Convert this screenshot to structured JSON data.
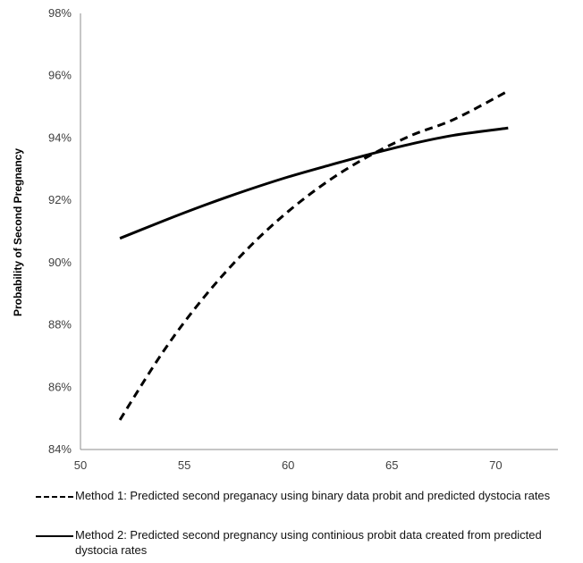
{
  "chart_data": {
    "type": "line",
    "title": "",
    "xlabel": "",
    "ylabel": "Probability of Second Pregnancy",
    "xlim": [
      50,
      73
    ],
    "ylim": [
      0.84,
      0.98
    ],
    "x_ticks": [
      "50",
      "55",
      "60",
      "65",
      "70"
    ],
    "y_ticks": [
      "84%",
      "86%",
      "88%",
      "90%",
      "92%",
      "94%",
      "96%",
      "98%"
    ],
    "grid": false,
    "legend_placement": "bottom",
    "series": [
      {
        "name": "Method 1: Predicted second preganacy using binary data probit and predicted dystocia rates",
        "style": "dashed",
        "color": "#000000",
        "x": [
          51.9,
          54,
          56,
          58,
          60,
          62,
          64,
          66,
          68,
          70.6
        ],
        "y": [
          0.8495,
          0.8716,
          0.8893,
          0.9041,
          0.9164,
          0.9265,
          0.9346,
          0.941,
          0.946,
          0.9551
        ]
      },
      {
        "name": "Method 2: Predicted second pregnancy using continious probit data created from predicted dystocia rates",
        "style": "solid",
        "color": "#000000",
        "x": [
          51.9,
          54,
          56,
          58,
          60,
          62,
          64,
          66,
          68,
          70.6
        ],
        "y": [
          0.9078,
          0.9134,
          0.9185,
          0.9232,
          0.9275,
          0.9313,
          0.9349,
          0.9382,
          0.9409,
          0.9432
        ]
      }
    ]
  }
}
